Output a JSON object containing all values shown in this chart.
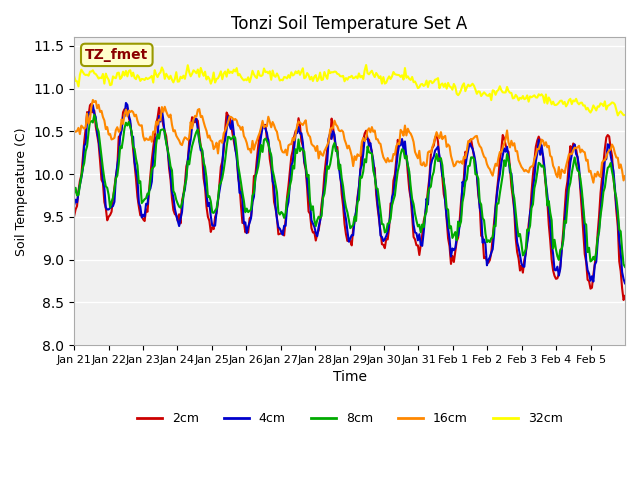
{
  "title": "Tonzi Soil Temperature Set A",
  "xlabel": "Time",
  "ylabel": "Soil Temperature (C)",
  "ylim": [
    8.0,
    11.6
  ],
  "yticks": [
    8.0,
    8.5,
    9.0,
    9.5,
    10.0,
    10.5,
    11.0,
    11.5
  ],
  "x_tick_labels": [
    "Jan 21",
    "Jan 22",
    "Jan 23",
    "Jan 24",
    "Jan 25",
    "Jan 26",
    "Jan 27",
    "Jan 28",
    "Jan 29",
    "Jan 30",
    "Jan 31",
    "Feb 1",
    "Feb 2",
    "Feb 3",
    "Feb 4",
    "Feb 5"
  ],
  "annotation_text": "TZ_fmet",
  "annotation_color": "#8b0000",
  "annotation_bg": "#ffffcc",
  "annotation_border": "#999900",
  "colors": {
    "2cm": "#cc0000",
    "4cm": "#0000cc",
    "8cm": "#00aa00",
    "16cm": "#ff8800",
    "32cm": "#ffff00"
  },
  "line_widths": {
    "2cm": 1.5,
    "4cm": 1.5,
    "8cm": 1.5,
    "16cm": 1.5,
    "32cm": 1.5
  },
  "plot_bg": "#f0f0f0"
}
